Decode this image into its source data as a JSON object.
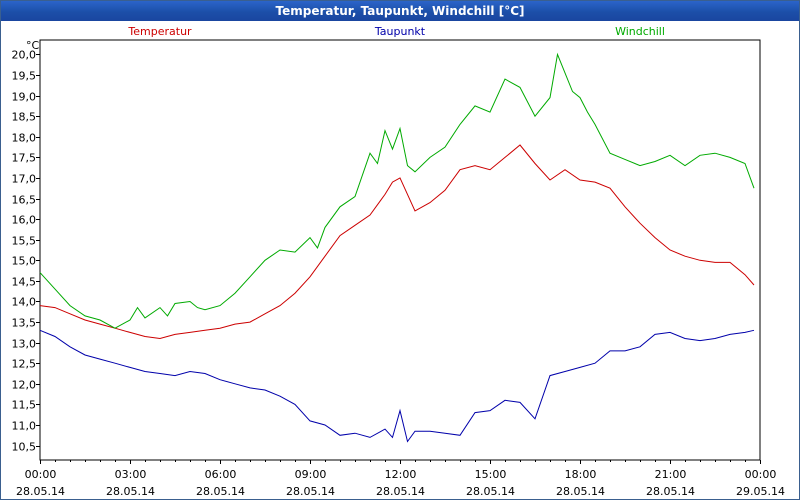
{
  "window": {
    "title": "Temperatur, Taupunkt, Windchill [°C]"
  },
  "chart_data": {
    "type": "line",
    "title": "Temperatur, Taupunkt, Windchill [°C]",
    "ylabel": "°C",
    "ylim": [
      10.15,
      20.35
    ],
    "yticks": [
      "10,5",
      "11,0",
      "11,5",
      "12,0",
      "12,5",
      "13,0",
      "13,5",
      "14,0",
      "14,5",
      "15,0",
      "15,5",
      "16,0",
      "16,5",
      "17,0",
      "17,5",
      "18,0",
      "18,5",
      "19,0",
      "19,5",
      "20,0"
    ],
    "xlim": [
      0,
      24
    ],
    "xticks": [
      {
        "time": "00:00",
        "date": "28.05.14"
      },
      {
        "time": "03:00",
        "date": "28.05.14"
      },
      {
        "time": "06:00",
        "date": "28.05.14"
      },
      {
        "time": "09:00",
        "date": "28.05.14"
      },
      {
        "time": "12:00",
        "date": "28.05.14"
      },
      {
        "time": "15:00",
        "date": "28.05.14"
      },
      {
        "time": "18:00",
        "date": "28.05.14"
      },
      {
        "time": "21:00",
        "date": "28.05.14"
      },
      {
        "time": "00:00",
        "date": "29.05.14"
      }
    ],
    "grid": true,
    "legend_position": "top",
    "series": [
      {
        "name": "Temperatur",
        "color": "#cc0000",
        "x": [
          0,
          0.5,
          1,
          1.5,
          2,
          2.5,
          3,
          3.5,
          4,
          4.5,
          5,
          5.5,
          6,
          6.5,
          7,
          7.5,
          8,
          8.5,
          9,
          9.5,
          10,
          10.5,
          11,
          11.5,
          11.75,
          12,
          12.25,
          12.5,
          13,
          13.5,
          14,
          14.5,
          15,
          15.5,
          16,
          16.5,
          17,
          17.5,
          18,
          18.5,
          19,
          19.5,
          20,
          20.5,
          21,
          21.5,
          22,
          22.5,
          23,
          23.5,
          23.8
        ],
        "y": [
          13.9,
          13.85,
          13.7,
          13.55,
          13.45,
          13.35,
          13.25,
          13.15,
          13.1,
          13.2,
          13.25,
          13.3,
          13.35,
          13.45,
          13.5,
          13.7,
          13.9,
          14.2,
          14.6,
          15.1,
          15.6,
          15.85,
          16.1,
          16.6,
          16.9,
          17.0,
          16.6,
          16.2,
          16.4,
          16.7,
          17.2,
          17.3,
          17.2,
          17.5,
          17.8,
          17.35,
          16.95,
          17.2,
          16.95,
          16.9,
          16.75,
          16.3,
          15.9,
          15.55,
          15.25,
          15.1,
          15.0,
          14.95,
          14.95,
          14.65,
          14.4
        ]
      },
      {
        "name": "Taupunkt",
        "color": "#0000aa",
        "x": [
          0,
          0.5,
          1,
          1.5,
          2,
          2.5,
          3,
          3.5,
          4,
          4.5,
          5,
          5.5,
          6,
          6.5,
          7,
          7.5,
          8,
          8.5,
          9,
          9.5,
          10,
          10.5,
          11,
          11.5,
          11.75,
          12,
          12.25,
          12.5,
          13,
          13.5,
          14,
          14.5,
          15,
          15.5,
          16,
          16.5,
          17,
          17.5,
          18,
          18.5,
          19,
          19.5,
          20,
          20.5,
          21,
          21.5,
          22,
          22.5,
          23,
          23.5,
          23.8
        ],
        "y": [
          13.3,
          13.15,
          12.9,
          12.7,
          12.6,
          12.5,
          12.4,
          12.3,
          12.25,
          12.2,
          12.3,
          12.25,
          12.1,
          12.0,
          11.9,
          11.85,
          11.7,
          11.5,
          11.1,
          11.0,
          10.75,
          10.8,
          10.7,
          10.9,
          10.7,
          11.35,
          10.6,
          10.85,
          10.85,
          10.8,
          10.75,
          11.3,
          11.35,
          11.6,
          11.55,
          11.15,
          12.2,
          12.3,
          12.4,
          12.5,
          12.8,
          12.8,
          12.9,
          13.2,
          13.25,
          13.1,
          13.05,
          13.1,
          13.2,
          13.25,
          13.3
        ]
      },
      {
        "name": "Windchill",
        "color": "#00aa00",
        "x": [
          0,
          0.5,
          1,
          1.5,
          2,
          2.5,
          3,
          3.25,
          3.5,
          4,
          4.25,
          4.5,
          5,
          5.25,
          5.5,
          6,
          6.5,
          7,
          7.5,
          8,
          8.5,
          9,
          9.25,
          9.5,
          10,
          10.5,
          11,
          11.25,
          11.5,
          11.75,
          12,
          12.25,
          12.5,
          13,
          13.5,
          14,
          14.5,
          15,
          15.5,
          16,
          16.5,
          17,
          17.25,
          17.5,
          17.75,
          18,
          18.25,
          18.5,
          19,
          19.5,
          20,
          20.5,
          21,
          21.5,
          22,
          22.5,
          23,
          23.5,
          23.8
        ],
        "y": [
          14.7,
          14.3,
          13.9,
          13.65,
          13.55,
          13.35,
          13.55,
          13.85,
          13.6,
          13.85,
          13.65,
          13.95,
          14.0,
          13.85,
          13.8,
          13.9,
          14.2,
          14.6,
          15.0,
          15.25,
          15.2,
          15.55,
          15.3,
          15.8,
          16.3,
          16.55,
          17.6,
          17.35,
          18.15,
          17.7,
          18.2,
          17.3,
          17.15,
          17.5,
          17.75,
          18.3,
          18.75,
          18.6,
          19.4,
          19.2,
          18.5,
          18.95,
          20.0,
          19.55,
          19.1,
          18.95,
          18.6,
          18.3,
          17.6,
          17.45,
          17.3,
          17.4,
          17.55,
          17.3,
          17.55,
          17.6,
          17.5,
          17.35,
          16.75
        ]
      }
    ]
  }
}
